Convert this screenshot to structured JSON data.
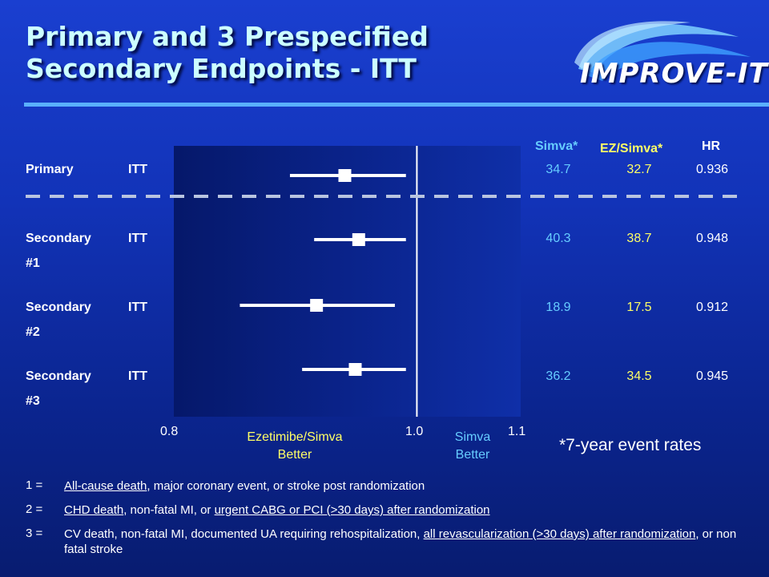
{
  "slide": {
    "title_line1": "Primary and 3 Prespecified",
    "title_line2": "Secondary Endpoints - ITT",
    "logo_text": "IMPROVE-IT"
  },
  "colors": {
    "background": "#1233b8",
    "title": "#ccffff",
    "rule": "#5ab0ff",
    "simva": "#66ccff",
    "ez_simva": "#ffff66",
    "marker": "#ffffff"
  },
  "table_headers": {
    "simva": "Simva*",
    "ez_simva": "EZ/Simva*",
    "hr": "HR"
  },
  "endpoints": [
    {
      "label1": "Primary",
      "label2": "",
      "population": "ITT",
      "simva": "34.7",
      "ez_simva": "32.7",
      "hr": "0.936"
    },
    {
      "label1": "Secondary",
      "label2": "#1",
      "population": "ITT",
      "simva": "40.3",
      "ez_simva": "38.7",
      "hr": "0.948"
    },
    {
      "label1": "Secondary",
      "label2": "#2",
      "population": "ITT",
      "simva": "18.9",
      "ez_simva": "17.5",
      "hr": "0.912"
    },
    {
      "label1": "Secondary",
      "label2": "#3",
      "population": "ITT",
      "simva": "36.2",
      "ez_simva": "34.5",
      "hr": "0.945"
    }
  ],
  "chart_data": {
    "type": "forest",
    "x_scale": "log",
    "xlim": [
      0.8,
      1.1
    ],
    "x_ticks": [
      "0.8",
      "1.0",
      "1.1"
    ],
    "reference_line": 1.0,
    "left_label": "Ezetimibe/Simva Better",
    "right_label": "Simva Better",
    "series": [
      {
        "category": "Primary",
        "hr": 0.936,
        "ci_low": 0.89,
        "ci_high": 0.99
      },
      {
        "category": "Secondary #1",
        "hr": 0.948,
        "ci_low": 0.91,
        "ci_high": 0.99
      },
      {
        "category": "Secondary #2",
        "hr": 0.912,
        "ci_low": 0.85,
        "ci_high": 0.98
      },
      {
        "category": "Secondary #3",
        "hr": 0.945,
        "ci_low": 0.9,
        "ci_high": 0.99
      }
    ]
  },
  "labels": {
    "left_better_1": "Ezetimibe/Simva",
    "left_better_2": "Better",
    "right_better_1": "Simva",
    "right_better_2": "Better",
    "note": "*7-year event rates"
  },
  "footnotes": [
    {
      "num": "1 =",
      "text_html": "<u>All-cause death</u>, major coronary event, or stroke post randomization"
    },
    {
      "num": "2 =",
      "text_html": "<u>CHD death</u>, non-fatal MI, or <u>urgent CABG or PCI (>30 days) after randomization</u>"
    },
    {
      "num": "3 =",
      "text_html": "CV death, non-fatal MI, documented UA requiring rehospitalization, <u>all revascularization (>30 days) after randomization</u>, or non fatal stroke"
    }
  ]
}
